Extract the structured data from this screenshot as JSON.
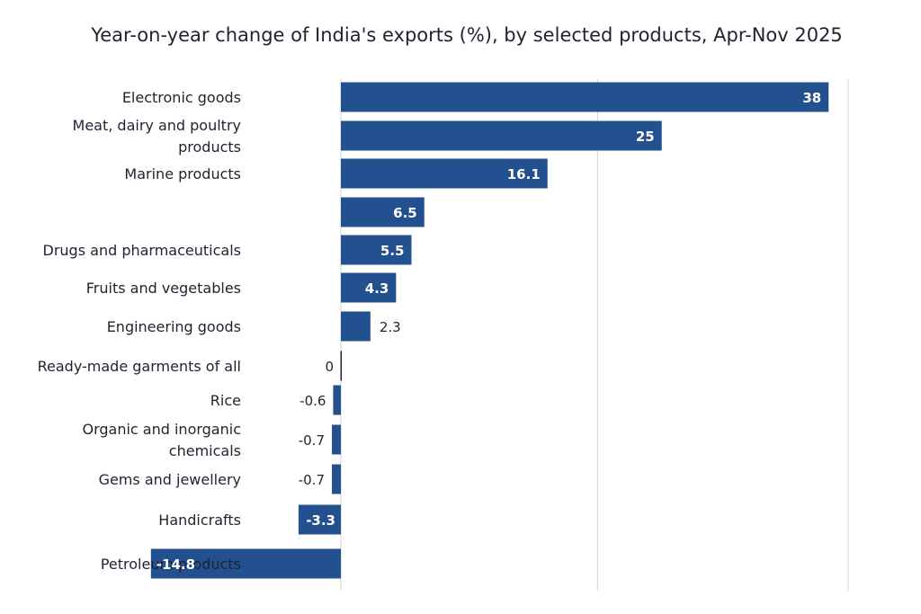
{
  "chart_data": {
    "type": "bar",
    "orientation": "horizontal",
    "title": "Year-on-year change of India's exports (%), by selected products, Apr-Nov 2025",
    "categories": [
      "Electronic goods",
      "Meat, dairy and poultry products",
      "Marine products",
      "",
      "Drugs and pharmaceuticals",
      "Fruits and vegetables",
      "Engineering goods",
      "Ready-made garments of all",
      "Rice",
      "Organic and inorganic chemicals",
      "Gems and jewellery",
      "Handicrafts",
      "Petroleum products"
    ],
    "values": [
      38,
      25,
      16.1,
      6.5,
      5.5,
      4.3,
      2.3,
      0,
      -0.6,
      -0.7,
      -0.7,
      -3.3,
      -14.8
    ],
    "value_labels": [
      "38",
      "25",
      "16.1",
      "6.5",
      "5.5",
      "4.3",
      "2.3",
      "0",
      "-0.6",
      "-0.7",
      "-0.7",
      "-3.3",
      "-14.8"
    ],
    "xlim": [
      -15,
      40
    ],
    "xlabel": "",
    "ylabel": "",
    "grid": true,
    "legend": "none",
    "bar_color": "#23508f"
  }
}
